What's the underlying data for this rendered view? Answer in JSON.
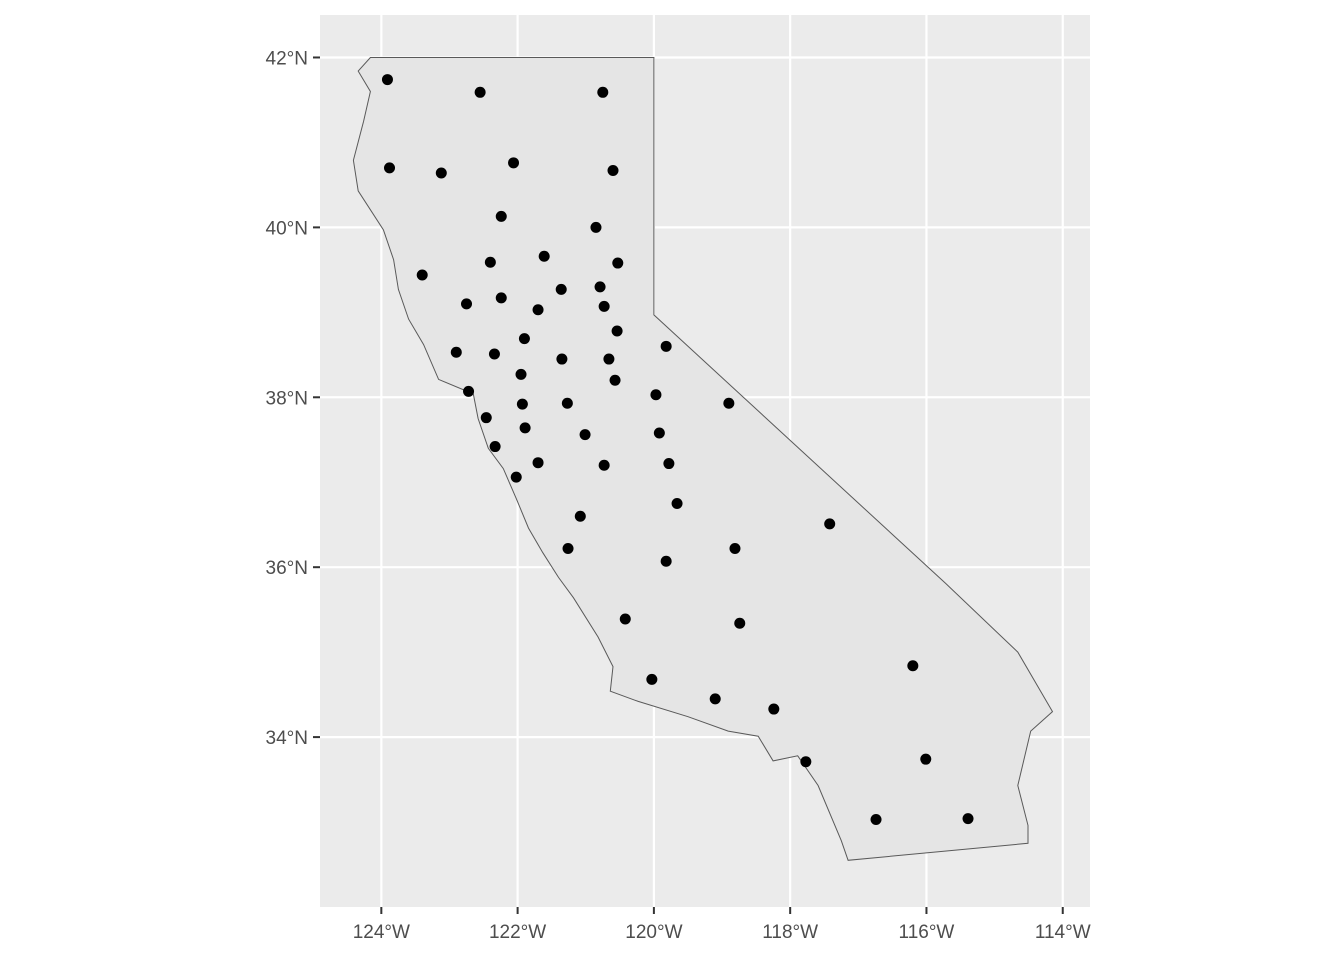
{
  "chart_data": {
    "type": "map",
    "title": "",
    "xlabel": "",
    "ylabel": "",
    "xlim": [
      -124.9,
      -113.6
    ],
    "ylim": [
      32.0,
      42.5
    ],
    "grid": true,
    "x_ticks": [
      {
        "value": -124,
        "label": "124°W"
      },
      {
        "value": -122,
        "label": "122°W"
      },
      {
        "value": -120,
        "label": "120°W"
      },
      {
        "value": -118,
        "label": "118°W"
      },
      {
        "value": -116,
        "label": "116°W"
      },
      {
        "value": -114,
        "label": "114°W"
      }
    ],
    "y_ticks": [
      {
        "value": 34,
        "label": "34°N"
      },
      {
        "value": 36,
        "label": "36°N"
      },
      {
        "value": 38,
        "label": "38°N"
      },
      {
        "value": 40,
        "label": "40°N"
      },
      {
        "value": 42,
        "label": "42°N"
      }
    ],
    "colors": {
      "panel": "#ebebeb",
      "grid": "#ffffff",
      "land_fill": "#e5e5e5",
      "border": "#595959",
      "point": "#000000"
    },
    "state_outline": [
      [
        -124.16,
        42.0
      ],
      [
        -120.0,
        42.0
      ],
      [
        -120.0,
        38.97
      ],
      [
        -115.72,
        35.81
      ],
      [
        -114.66,
        35.0
      ],
      [
        -114.15,
        34.3
      ],
      [
        -114.47,
        34.07
      ],
      [
        -114.66,
        33.43
      ],
      [
        -114.51,
        32.96
      ],
      [
        -114.51,
        32.75
      ],
      [
        -117.15,
        32.55
      ],
      [
        -117.25,
        32.78
      ],
      [
        -117.59,
        33.43
      ],
      [
        -117.89,
        33.78
      ],
      [
        -118.25,
        33.72
      ],
      [
        -118.47,
        34.01
      ],
      [
        -118.91,
        34.07
      ],
      [
        -119.5,
        34.24
      ],
      [
        -120.23,
        34.42
      ],
      [
        -120.64,
        34.54
      ],
      [
        -120.6,
        34.83
      ],
      [
        -120.82,
        35.18
      ],
      [
        -121.18,
        35.64
      ],
      [
        -121.4,
        35.88
      ],
      [
        -121.63,
        36.17
      ],
      [
        -121.84,
        36.46
      ],
      [
        -122.02,
        36.81
      ],
      [
        -122.21,
        37.16
      ],
      [
        -122.43,
        37.4
      ],
      [
        -122.58,
        37.75
      ],
      [
        -122.65,
        38.04
      ],
      [
        -123.16,
        38.21
      ],
      [
        -123.38,
        38.62
      ],
      [
        -123.6,
        38.92
      ],
      [
        -123.75,
        39.27
      ],
      [
        -123.82,
        39.62
      ],
      [
        -123.97,
        39.97
      ],
      [
        -124.34,
        40.43
      ],
      [
        -124.41,
        40.79
      ],
      [
        -124.26,
        41.25
      ],
      [
        -124.16,
        41.6
      ],
      [
        -124.34,
        41.84
      ]
    ],
    "points": [
      [
        -123.91,
        41.74
      ],
      [
        -122.55,
        41.59
      ],
      [
        -120.75,
        41.59
      ],
      [
        -123.88,
        40.7
      ],
      [
        -123.12,
        40.64
      ],
      [
        -122.06,
        40.76
      ],
      [
        -120.6,
        40.67
      ],
      [
        -122.24,
        40.13
      ],
      [
        -120.85,
        40.0
      ],
      [
        -123.4,
        39.44
      ],
      [
        -122.4,
        39.59
      ],
      [
        -121.61,
        39.66
      ],
      [
        -120.53,
        39.58
      ],
      [
        -122.24,
        39.17
      ],
      [
        -121.36,
        39.27
      ],
      [
        -120.79,
        39.3
      ],
      [
        -122.75,
        39.1
      ],
      [
        -121.7,
        39.03
      ],
      [
        -120.73,
        39.07
      ],
      [
        -120.54,
        38.78
      ],
      [
        -121.9,
        38.69
      ],
      [
        -122.9,
        38.53
      ],
      [
        -122.34,
        38.51
      ],
      [
        -121.35,
        38.45
      ],
      [
        -120.66,
        38.45
      ],
      [
        -119.82,
        38.6
      ],
      [
        -121.95,
        38.27
      ],
      [
        -120.57,
        38.2
      ],
      [
        -122.72,
        38.07
      ],
      [
        -121.93,
        37.92
      ],
      [
        -121.27,
        37.93
      ],
      [
        -119.97,
        38.03
      ],
      [
        -118.9,
        37.93
      ],
      [
        -122.46,
        37.76
      ],
      [
        -121.89,
        37.64
      ],
      [
        -121.01,
        37.56
      ],
      [
        -119.92,
        37.58
      ],
      [
        -122.33,
        37.42
      ],
      [
        -121.7,
        37.23
      ],
      [
        -120.73,
        37.2
      ],
      [
        -119.78,
        37.22
      ],
      [
        -122.02,
        37.06
      ],
      [
        -119.66,
        36.75
      ],
      [
        -117.42,
        36.51
      ],
      [
        -121.08,
        36.6
      ],
      [
        -121.26,
        36.22
      ],
      [
        -118.81,
        36.22
      ],
      [
        -119.82,
        36.07
      ],
      [
        -120.42,
        35.39
      ],
      [
        -118.74,
        35.34
      ],
      [
        -116.2,
        34.84
      ],
      [
        -120.03,
        34.68
      ],
      [
        -119.1,
        34.45
      ],
      [
        -118.24,
        34.33
      ],
      [
        -117.77,
        33.71
      ],
      [
        -116.01,
        33.74
      ],
      [
        -116.74,
        33.03
      ],
      [
        -115.39,
        33.04
      ]
    ]
  }
}
